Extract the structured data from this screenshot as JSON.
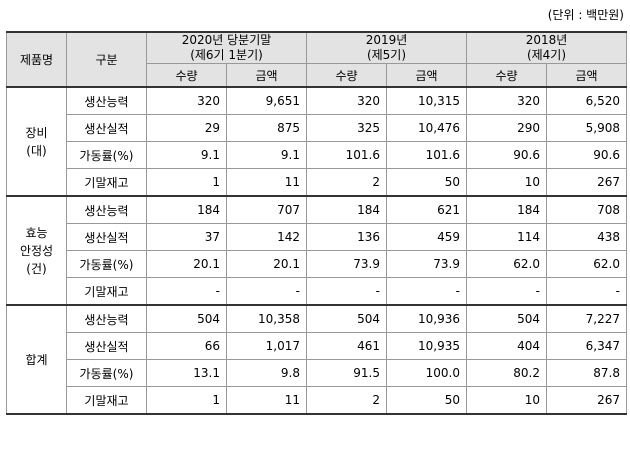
{
  "unit_label": "(단위 : 백만원)",
  "header": {
    "col_product": "제품명",
    "col_category": "구분",
    "periods": [
      {
        "year": "2020년 당분기말",
        "term": "(제6기 1분기)"
      },
      {
        "year": "2019년",
        "term": "(제5기)"
      },
      {
        "year": "2018년",
        "term": "(제4기)"
      }
    ],
    "qty_label": "수량",
    "amt_label": "금액"
  },
  "groups": [
    {
      "name": [
        "장비",
        "(대)"
      ],
      "rows": [
        {
          "label": "생산능력",
          "values": [
            "320",
            "9,651",
            "320",
            "10,315",
            "320",
            "6,520"
          ]
        },
        {
          "label": "생산실적",
          "values": [
            "29",
            "875",
            "325",
            "10,476",
            "290",
            "5,908"
          ]
        },
        {
          "label": "가동률(%)",
          "values": [
            "9.1",
            "9.1",
            "101.6",
            "101.6",
            "90.6",
            "90.6"
          ]
        },
        {
          "label": "기말재고",
          "values": [
            "1",
            "11",
            "2",
            "50",
            "10",
            "267"
          ]
        }
      ]
    },
    {
      "name": [
        "효능",
        "안정성",
        "(건)"
      ],
      "rows": [
        {
          "label": "생산능력",
          "values": [
            "184",
            "707",
            "184",
            "621",
            "184",
            "708"
          ]
        },
        {
          "label": "생산실적",
          "values": [
            "37",
            "142",
            "136",
            "459",
            "114",
            "438"
          ]
        },
        {
          "label": "가동률(%)",
          "values": [
            "20.1",
            "20.1",
            "73.9",
            "73.9",
            "62.0",
            "62.0"
          ]
        },
        {
          "label": "기말재고",
          "values": [
            "-",
            "-",
            "-",
            "-",
            "-",
            "-"
          ]
        }
      ]
    },
    {
      "name": [
        "합계"
      ],
      "rows": [
        {
          "label": "생산능력",
          "values": [
            "504",
            "10,358",
            "504",
            "10,936",
            "504",
            "7,227"
          ]
        },
        {
          "label": "생산실적",
          "values": [
            "66",
            "1,017",
            "461",
            "10,935",
            "404",
            "6,347"
          ]
        },
        {
          "label": "가동률(%)",
          "values": [
            "13.1",
            "9.8",
            "91.5",
            "100.0",
            "80.2",
            "87.8"
          ]
        },
        {
          "label": "기말재고",
          "values": [
            "1",
            "11",
            "2",
            "50",
            "10",
            "267"
          ]
        }
      ]
    }
  ]
}
